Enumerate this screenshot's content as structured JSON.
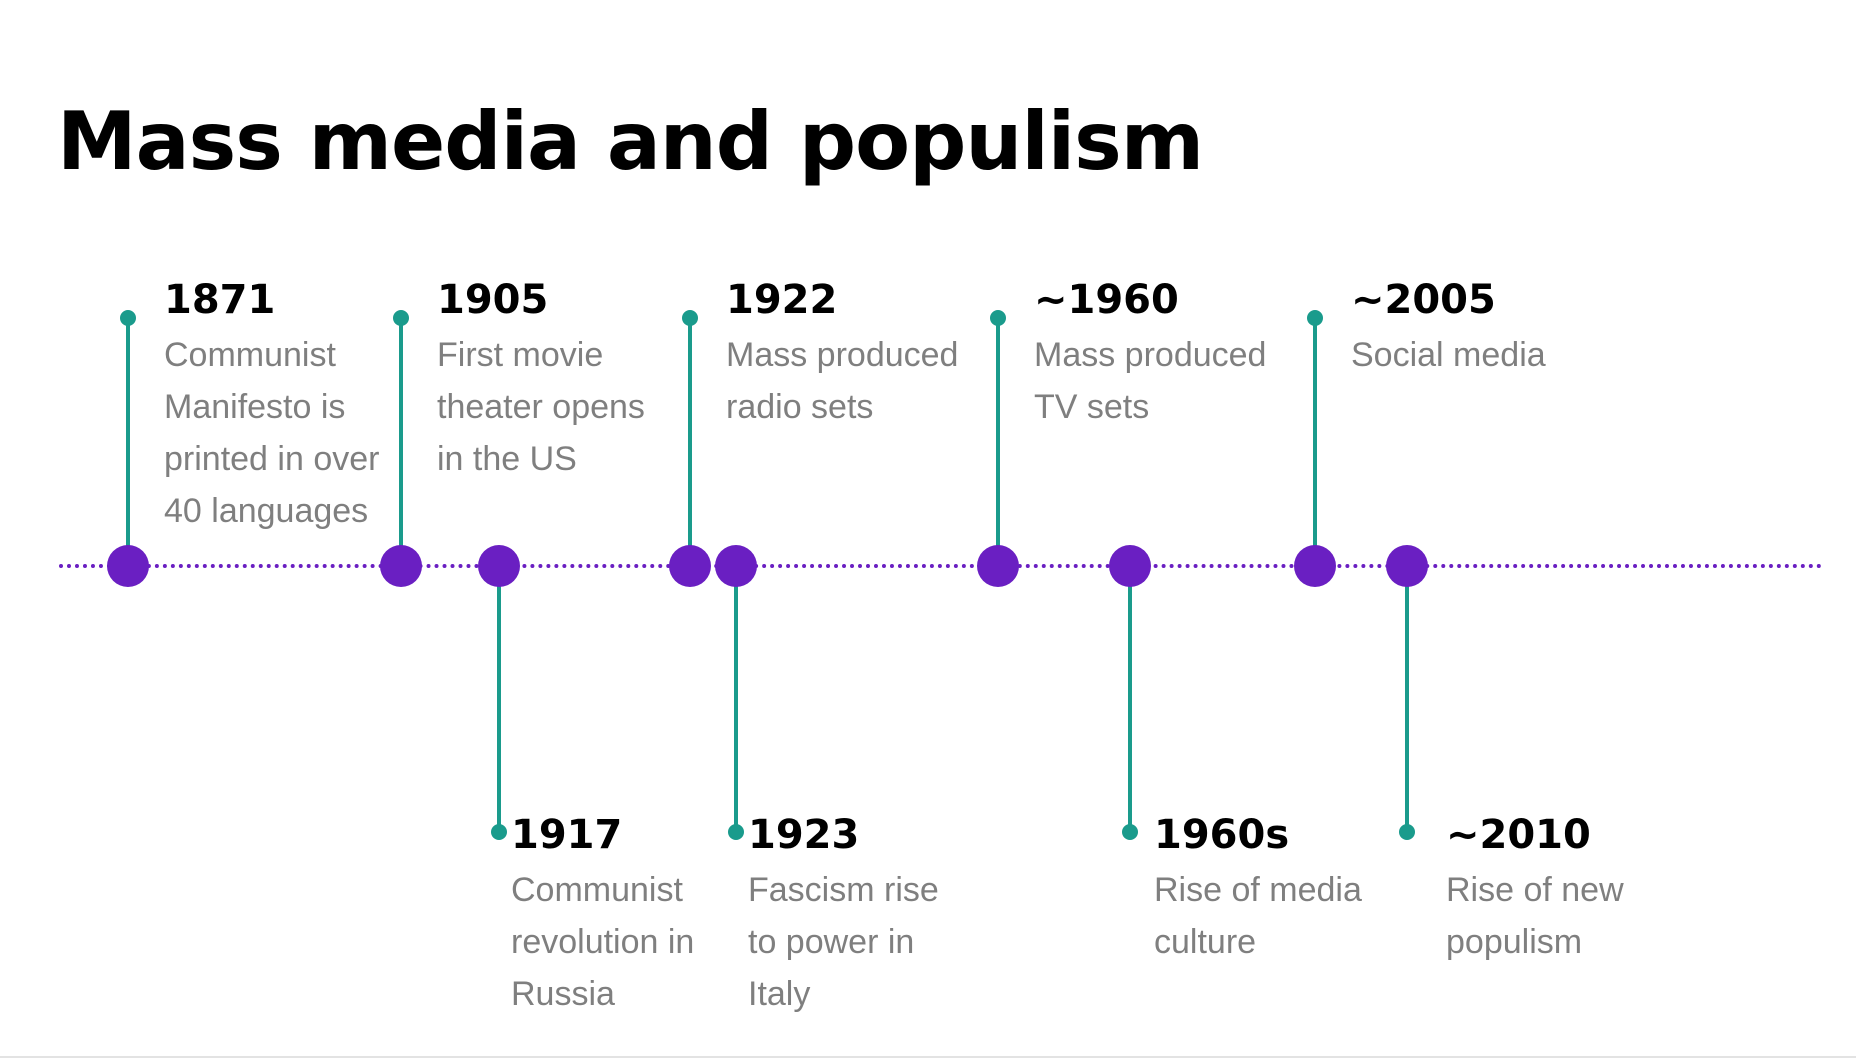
{
  "title": "Mass media and populism",
  "colors": {
    "axis": "#6a1fc2",
    "node": "#6a1fc2",
    "stem": "#1a9b8c",
    "year_text": "#000000",
    "description_text": "#7f7f7f"
  },
  "events": [
    {
      "year": "1871",
      "lines": [
        "Communist",
        "Manifesto is",
        "printed in over",
        "40 languages"
      ],
      "side": "above"
    },
    {
      "year": "1905",
      "lines": [
        "First movie",
        "theater opens",
        "in the US"
      ],
      "side": "above"
    },
    {
      "year": "1917",
      "lines": [
        "Communist",
        "revolution in",
        "Russia"
      ],
      "side": "below"
    },
    {
      "year": "1922",
      "lines": [
        "Mass produced",
        "radio sets"
      ],
      "side": "above"
    },
    {
      "year": "1923",
      "lines": [
        "Fascism rise",
        "to power in",
        "Italy"
      ],
      "side": "below"
    },
    {
      "year": "~1960",
      "lines": [
        "Mass produced",
        "TV sets"
      ],
      "side": "above"
    },
    {
      "year": "1960s",
      "lines": [
        "Rise of media",
        "culture"
      ],
      "side": "below"
    },
    {
      "year": "~2005",
      "lines": [
        "Social media"
      ],
      "side": "above"
    },
    {
      "year": "~2010",
      "lines": [
        "Rise of new",
        "populism"
      ],
      "side": "below"
    }
  ]
}
